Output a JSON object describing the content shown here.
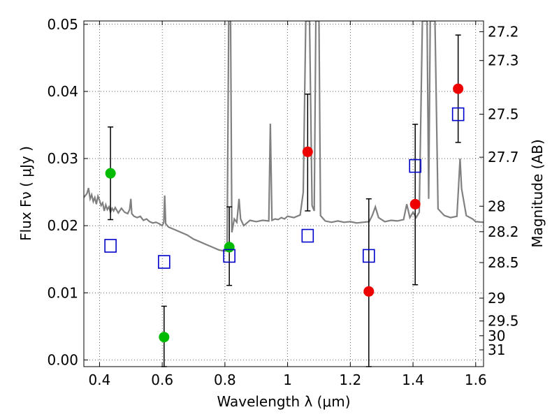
{
  "chart_data": {
    "type": "scatter",
    "xlabel": "Wavelength  λ (μm)",
    "ylabel": "Flux  Fν  ( μJy )",
    "y2label": "Magnitude (AB)",
    "xlim": [
      0.35,
      1.625
    ],
    "ylim": [
      -0.001,
      0.0505
    ],
    "grid": true,
    "x_ticks": [
      0.4,
      0.6,
      0.8,
      1.0,
      1.2,
      1.4,
      1.6
    ],
    "x_tick_labels": [
      "0.4",
      "0.6",
      "0.8",
      "1",
      "1.2",
      "1.4",
      "1.6"
    ],
    "y_ticks": [
      0.0,
      0.01,
      0.02,
      0.03,
      0.04,
      0.05
    ],
    "y_tick_labels": [
      "0.00",
      "0.01",
      "0.02",
      "0.03",
      "0.04",
      "0.05"
    ],
    "y2_ticks": [
      {
        "label": "27.2",
        "flux": 0.0489
      },
      {
        "label": "27.3",
        "flux": 0.0446
      },
      {
        "label": "27.5",
        "flux": 0.0366
      },
      {
        "label": "27.7",
        "flux": 0.0302
      },
      {
        "label": "28",
        "flux": 0.0229
      },
      {
        "label": "28.2",
        "flux": 0.0191
      },
      {
        "label": "28.5",
        "flux": 0.0145
      },
      {
        "label": "29",
        "flux": 0.0092
      },
      {
        "label": "29.5",
        "flux": 0.0058
      },
      {
        "label": "30",
        "flux": 0.0036
      },
      {
        "label": "31",
        "flux": 0.0015
      }
    ],
    "series": [
      {
        "marker": "circle",
        "color": "#00bb00",
        "points": [
          {
            "x": 0.435,
            "y": 0.0278,
            "ylow": 0.0209,
            "yhigh": 0.0347
          },
          {
            "x": 0.606,
            "y": 0.0034,
            "ylow": -0.001,
            "yhigh": 0.008
          },
          {
            "x": 0.814,
            "y": 0.0168,
            "ylow": 0.0111,
            "yhigh": 0.0228
          }
        ]
      },
      {
        "marker": "circle",
        "color": "#ee0000",
        "points": [
          {
            "x": 1.064,
            "y": 0.031,
            "ylow": 0.0222,
            "yhigh": 0.0396
          },
          {
            "x": 1.259,
            "y": 0.0102,
            "ylow": -0.001,
            "yhigh": 0.024
          },
          {
            "x": 1.407,
            "y": 0.0232,
            "ylow": 0.0112,
            "yhigh": 0.0351
          },
          {
            "x": 1.544,
            "y": 0.0404,
            "ylow": 0.0324,
            "yhigh": 0.0484
          }
        ]
      },
      {
        "marker": "open-square",
        "color": "#0000cc",
        "points": [
          {
            "x": 0.435,
            "y": 0.017
          },
          {
            "x": 0.606,
            "y": 0.0146
          },
          {
            "x": 0.814,
            "y": 0.0155
          },
          {
            "x": 1.064,
            "y": 0.0185
          },
          {
            "x": 1.259,
            "y": 0.0155
          },
          {
            "x": 1.407,
            "y": 0.0289
          },
          {
            "x": 1.544,
            "y": 0.0366
          }
        ]
      }
    ],
    "model_spectrum": {
      "color": "#808080",
      "points": [
        [
          0.35,
          0.0242
        ],
        [
          0.36,
          0.0248
        ],
        [
          0.365,
          0.0256
        ],
        [
          0.37,
          0.024
        ],
        [
          0.375,
          0.0246
        ],
        [
          0.38,
          0.0236
        ],
        [
          0.385,
          0.0242
        ],
        [
          0.39,
          0.0232
        ],
        [
          0.395,
          0.0244
        ],
        [
          0.4,
          0.0238
        ],
        [
          0.405,
          0.023
        ],
        [
          0.41,
          0.0234
        ],
        [
          0.415,
          0.0222
        ],
        [
          0.42,
          0.0231
        ],
        [
          0.425,
          0.0224
        ],
        [
          0.43,
          0.0228
        ],
        [
          0.435,
          0.022
        ],
        [
          0.44,
          0.0226
        ],
        [
          0.445,
          0.0222
        ],
        [
          0.45,
          0.0227
        ],
        [
          0.46,
          0.0219
        ],
        [
          0.47,
          0.0226
        ],
        [
          0.48,
          0.022
        ],
        [
          0.49,
          0.0218
        ],
        [
          0.496,
          0.0224
        ],
        [
          0.5,
          0.024
        ],
        [
          0.503,
          0.0218
        ],
        [
          0.51,
          0.0214
        ],
        [
          0.52,
          0.0212
        ],
        [
          0.53,
          0.0214
        ],
        [
          0.54,
          0.0208
        ],
        [
          0.55,
          0.021
        ],
        [
          0.56,
          0.0206
        ],
        [
          0.57,
          0.0204
        ],
        [
          0.58,
          0.0205
        ],
        [
          0.59,
          0.0203
        ],
        [
          0.6,
          0.02
        ],
        [
          0.605,
          0.0205
        ],
        [
          0.608,
          0.0245
        ],
        [
          0.611,
          0.0203
        ],
        [
          0.62,
          0.0198
        ],
        [
          0.64,
          0.0194
        ],
        [
          0.66,
          0.019
        ],
        [
          0.68,
          0.0186
        ],
        [
          0.7,
          0.018
        ],
        [
          0.72,
          0.0176
        ],
        [
          0.74,
          0.0172
        ],
        [
          0.76,
          0.0168
        ],
        [
          0.78,
          0.0164
        ],
        [
          0.8,
          0.0162
        ],
        [
          0.807,
          0.0164
        ],
        [
          0.812,
          0.0505
        ],
        [
          0.818,
          0.0505
        ],
        [
          0.822,
          0.019
        ],
        [
          0.83,
          0.021
        ],
        [
          0.838,
          0.0205
        ],
        [
          0.845,
          0.024
        ],
        [
          0.85,
          0.021
        ],
        [
          0.86,
          0.02
        ],
        [
          0.87,
          0.0204
        ],
        [
          0.88,
          0.0208
        ],
        [
          0.9,
          0.0206
        ],
        [
          0.92,
          0.0208
        ],
        [
          0.94,
          0.0207
        ],
        [
          0.945,
          0.0352
        ],
        [
          0.95,
          0.0208
        ],
        [
          0.96,
          0.021
        ],
        [
          0.97,
          0.0209
        ],
        [
          0.98,
          0.0212
        ],
        [
          0.99,
          0.021
        ],
        [
          1.0,
          0.0214
        ],
        [
          1.02,
          0.0212
        ],
        [
          1.04,
          0.0216
        ],
        [
          1.05,
          0.025
        ],
        [
          1.058,
          0.0505
        ],
        [
          1.07,
          0.0505
        ],
        [
          1.078,
          0.023
        ],
        [
          1.085,
          0.0222
        ],
        [
          1.09,
          0.0505
        ],
        [
          1.1,
          0.0505
        ],
        [
          1.105,
          0.0215
        ],
        [
          1.12,
          0.0207
        ],
        [
          1.14,
          0.0205
        ],
        [
          1.16,
          0.0207
        ],
        [
          1.18,
          0.0205
        ],
        [
          1.2,
          0.0206
        ],
        [
          1.22,
          0.0204
        ],
        [
          1.24,
          0.0205
        ],
        [
          1.26,
          0.0206
        ],
        [
          1.27,
          0.0215
        ],
        [
          1.28,
          0.0228
        ],
        [
          1.29,
          0.0212
        ],
        [
          1.31,
          0.0206
        ],
        [
          1.33,
          0.0208
        ],
        [
          1.35,
          0.0207
        ],
        [
          1.37,
          0.0209
        ],
        [
          1.38,
          0.0232
        ],
        [
          1.39,
          0.0212
        ],
        [
          1.4,
          0.022
        ],
        [
          1.41,
          0.0212
        ],
        [
          1.42,
          0.022
        ],
        [
          1.43,
          0.0505
        ],
        [
          1.445,
          0.0505
        ],
        [
          1.45,
          0.024
        ],
        [
          1.455,
          0.0505
        ],
        [
          1.47,
          0.0505
        ],
        [
          1.48,
          0.0225
        ],
        [
          1.5,
          0.0215
        ],
        [
          1.52,
          0.0212
        ],
        [
          1.54,
          0.0214
        ],
        [
          1.545,
          0.0255
        ],
        [
          1.55,
          0.03
        ],
        [
          1.555,
          0.0255
        ],
        [
          1.57,
          0.0215
        ],
        [
          1.59,
          0.021
        ],
        [
          1.6,
          0.0206
        ],
        [
          1.625,
          0.0205
        ]
      ]
    }
  }
}
